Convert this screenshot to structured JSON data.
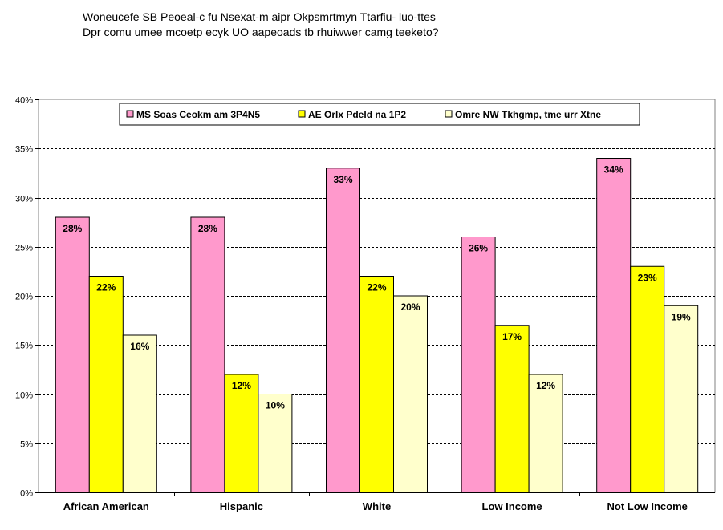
{
  "chart_data": {
    "type": "bar",
    "title": "Woneucefe SB Peoeal-c fu Nsexat-m aipr Okpsmrtmyn Ttarfiu- luo-ttes",
    "subtitle": "Dpr comu umee mcoetp ecyk UO aapeoads tb rhuiwwer camg teeketo?",
    "xlabel": "",
    "ylabel": "",
    "categories": [
      "African American",
      "Hispanic",
      "White",
      "Low Income",
      "Not Low Income"
    ],
    "ylim": [
      0,
      40
    ],
    "yticks": [
      "0%",
      "5%",
      "10%",
      "15%",
      "20%",
      "25%",
      "30%",
      "35%",
      "40%"
    ],
    "grid": true,
    "legend_position": "top",
    "series": [
      {
        "name": "MS Soas Ceokm am 3P4N5",
        "color": "#ff99cc",
        "values": [
          28,
          28,
          33,
          26,
          34
        ],
        "labels": [
          "28%",
          "28%",
          "33%",
          "26%",
          "34%"
        ]
      },
      {
        "name": "AE Orlx Pdeld na 1P2",
        "color": "#ffff00",
        "values": [
          22,
          12,
          22,
          17,
          23
        ],
        "labels": [
          "22%",
          "12%",
          "22%",
          "17%",
          "23%"
        ]
      },
      {
        "name": "Omre NW Tkhgmp, tme urr Xtne",
        "color": "#ffffcc",
        "values": [
          16,
          10,
          20,
          12,
          19
        ],
        "labels": [
          "16%",
          "10%",
          "20%",
          "12%",
          "19%"
        ]
      }
    ]
  }
}
